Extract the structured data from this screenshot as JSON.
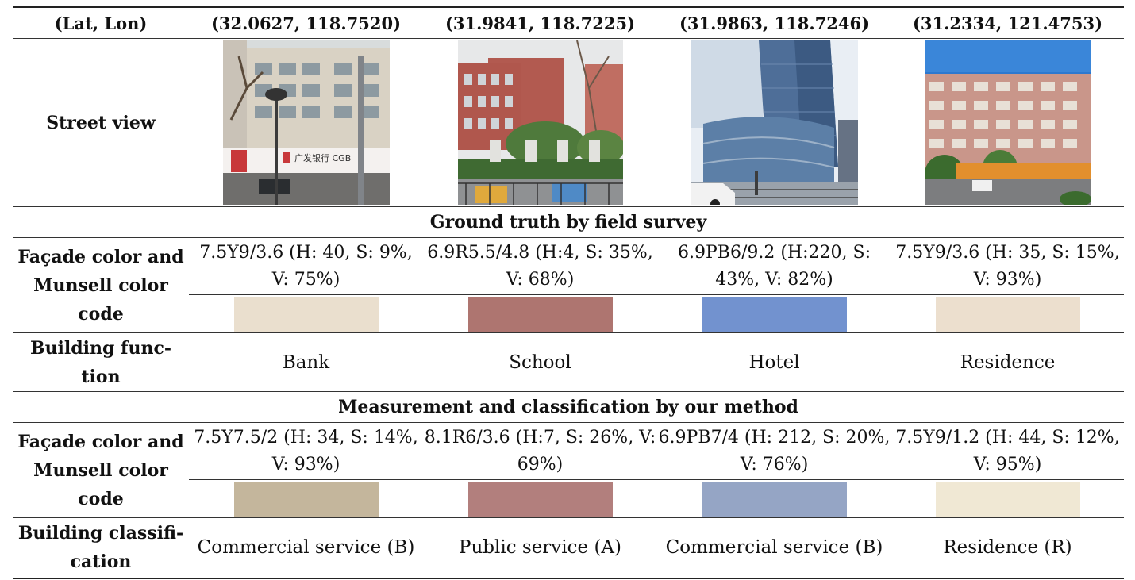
{
  "header": {
    "label": "(Lat, Lon)",
    "coords": [
      "(32.0627, 118.7520)",
      "(31.9841, 118.7225)",
      "(31.9863, 118.7246)",
      "(31.2334, 121.4753)"
    ]
  },
  "street_view": {
    "label": "Street view",
    "sign_text": "广发银行 CGB"
  },
  "ground_truth": {
    "title": "Ground truth by field survey",
    "facade_label": [
      "Façade color and",
      "Munsell color",
      "code"
    ],
    "facade_lines": [
      [
        "7.5Y9/3.6 (H: 40, S: 9%,",
        "V: 75%)"
      ],
      [
        "6.9R5.5/4.8 (H:4, S: 35%,",
        "V: 68%)"
      ],
      [
        "6.9PB6/9.2 (H:220, S:",
        "43%, V: 82%)"
      ],
      [
        "7.5Y9/3.6 (H: 35, S: 15%,",
        "V: 93%)"
      ]
    ],
    "swatch_colors": [
      "#eadfce",
      "#ae7570",
      "#7292cf",
      "#ecdfce"
    ],
    "function_label": [
      "Building func-",
      "tion"
    ],
    "functions": [
      "Bank",
      "School",
      "Hotel",
      "Residence"
    ]
  },
  "measurement": {
    "title": "Measurement and classification by our method",
    "facade_label": [
      "Façade color and",
      "Munsell color",
      "code"
    ],
    "facade_lines": [
      [
        "7.5Y7.5/2 (H: 34, S: 14%,",
        "V: 93%)"
      ],
      [
        "8.1R6/3.6 (H:7, S: 26%, V:",
        "69%)"
      ],
      [
        "6.9PB7/4 (H: 212, S: 20%,",
        "V: 76%)"
      ],
      [
        "7.5Y9/1.2 (H: 44, S: 12%,",
        "V: 95%)"
      ]
    ],
    "swatch_colors": [
      "#c4b69c",
      "#b27f7d",
      "#95a5c5",
      "#f0e8d4"
    ],
    "classification_label": [
      "Building classifi-",
      "cation"
    ],
    "classifications": [
      "Commercial service (B)",
      "Public service (A)",
      "Commercial service (B)",
      "Residence (R)"
    ]
  }
}
